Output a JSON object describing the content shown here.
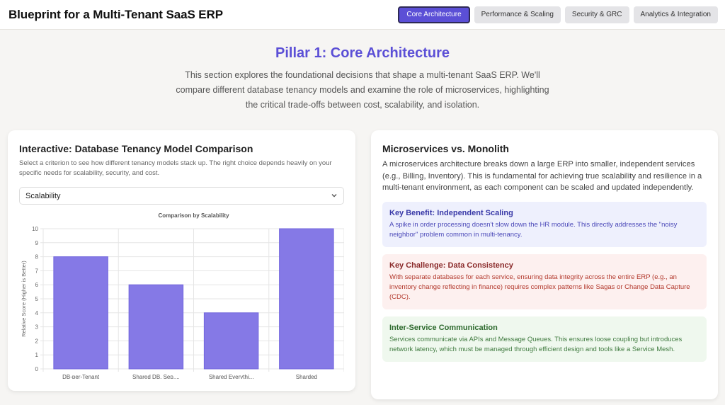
{
  "app": {
    "title": "Blueprint for a Multi-Tenant SaaS ERP"
  },
  "tabs": [
    {
      "label": "Core Architecture",
      "active": true
    },
    {
      "label": "Performance & Scaling",
      "active": false
    },
    {
      "label": "Security & GRC",
      "active": false
    },
    {
      "label": "Analytics & Integration",
      "active": false
    }
  ],
  "hero": {
    "title": "Pillar 1: Core Architecture",
    "text": "This section explores the foundational decisions that shape a multi-tenant SaaS ERP. We'll compare different database tenancy models and examine the role of microservices, highlighting the critical trade-offs between cost, scalability, and isolation."
  },
  "comparison": {
    "title": "Interactive: Database Tenancy Model Comparison",
    "description": "Select a criterion to see how different tenancy models stack up. The right choice depends heavily on your specific needs for scalability, security, and cost.",
    "selected": "Scalability"
  },
  "chart_data": {
    "type": "bar",
    "title": "Comparison by Scalability",
    "ylabel": "Relative Score (Higher is Better)",
    "xlabel": "",
    "categories": [
      "DB-per-Tenant",
      "Shared DB, Sep....",
      "Shared Everythi...",
      "Sharded"
    ],
    "values": [
      8,
      6,
      4,
      10
    ],
    "ylim": [
      0,
      10
    ],
    "yticks": [
      0,
      1,
      2,
      3,
      4,
      5,
      6,
      7,
      8,
      9,
      10
    ],
    "grid": true,
    "bar_color": "#8579e6"
  },
  "microservices": {
    "title": "Microservices vs. Monolith",
    "text": "A microservices architecture breaks down a large ERP into smaller, independent services (e.g., Billing, Inventory). This is fundamental for achieving true scalability and resilience in a multi-tenant environment, as each component can be scaled and updated independently.",
    "boxes": [
      {
        "title": "Key Benefit: Independent Scaling",
        "text": "A spike in order processing doesn't slow down the HR module. This directly addresses the \"noisy neighbor\" problem common in multi-tenancy."
      },
      {
        "title": "Key Challenge: Data Consistency",
        "text": "With separate databases for each service, ensuring data integrity across the entire ERP (e.g., an inventory change reflecting in finance) requires complex patterns like Sagas or Change Data Capture (CDC)."
      },
      {
        "title": "Inter-Service Communication",
        "text": "Services communicate via APIs and Message Queues. This ensures loose coupling but introduces network latency, which must be managed through efficient design and tools like a Service Mesh."
      }
    ]
  }
}
